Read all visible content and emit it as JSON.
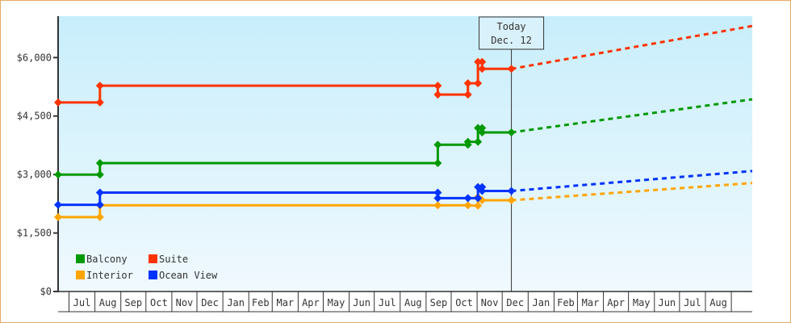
{
  "chart_data": {
    "type": "line",
    "title": "",
    "xlabel": "",
    "ylabel": "",
    "x_type": "date",
    "xlim": [
      "2013-06-18",
      "2015-09-26"
    ],
    "ylim": [
      0,
      7000
    ],
    "y_ticks": [
      0,
      1500,
      3000,
      4500,
      6000
    ],
    "y_tick_labels": [
      "$0",
      "$1,500",
      "$3,000",
      "$4,500",
      "$6,000"
    ],
    "x_tick_labels": [
      "Jul",
      "Aug",
      "Sep",
      "Oct",
      "Nov",
      "Dec",
      "Jan",
      "Feb",
      "Mar",
      "Apr",
      "May",
      "Jun",
      "Jul",
      "Aug",
      "Sep",
      "Oct",
      "Nov",
      "Dec",
      "Jan",
      "Feb",
      "Mar",
      "Apr",
      "May",
      "Jun",
      "Jul",
      "Aug"
    ],
    "grid": false,
    "legend_position": "bottom-left",
    "today": {
      "label_line1": "Today",
      "label_line2": "Dec. 12",
      "date": "2014-12-12"
    },
    "series": [
      {
        "name": "Balcony",
        "color": "#009900",
        "points": [
          [
            "2013-06-18",
            2999
          ],
          [
            "2013-08-07",
            2999
          ],
          [
            "2013-08-07",
            3294
          ],
          [
            "2014-09-15",
            3294
          ],
          [
            "2014-09-15",
            3765
          ],
          [
            "2014-10-21",
            3765
          ],
          [
            "2014-10-21",
            3840
          ],
          [
            "2014-11-02",
            3840
          ],
          [
            "2014-11-02",
            4195
          ],
          [
            "2014-11-07",
            4195
          ],
          [
            "2014-11-07",
            4080
          ],
          [
            "2014-12-12",
            4080
          ]
        ],
        "projection": [
          [
            "2014-12-12",
            4080
          ],
          [
            "2015-09-26",
            4930
          ]
        ]
      },
      {
        "name": "Suite",
        "color": "#ff3300",
        "points": [
          [
            "2013-06-18",
            4850
          ],
          [
            "2013-08-07",
            4850
          ],
          [
            "2013-08-07",
            5280
          ],
          [
            "2014-09-15",
            5280
          ],
          [
            "2014-09-15",
            5050
          ],
          [
            "2014-10-21",
            5050
          ],
          [
            "2014-10-21",
            5340
          ],
          [
            "2014-11-02",
            5340
          ],
          [
            "2014-11-02",
            5890
          ],
          [
            "2014-11-07",
            5890
          ],
          [
            "2014-11-07",
            5710
          ],
          [
            "2014-12-12",
            5710
          ]
        ],
        "projection": [
          [
            "2014-12-12",
            5710
          ],
          [
            "2015-09-26",
            6810
          ]
        ]
      },
      {
        "name": "Interior",
        "color": "#ffa500",
        "points": [
          [
            "2013-06-18",
            1909
          ],
          [
            "2013-08-07",
            1909
          ],
          [
            "2013-08-07",
            2210
          ],
          [
            "2014-09-15",
            2210
          ],
          [
            "2014-10-21",
            2210
          ],
          [
            "2014-11-02",
            2200
          ],
          [
            "2014-11-02",
            2420
          ],
          [
            "2014-11-07",
            2340
          ],
          [
            "2014-12-12",
            2340
          ]
        ],
        "projection": [
          [
            "2014-12-12",
            2340
          ],
          [
            "2015-09-26",
            2783
          ]
        ]
      },
      {
        "name": "Ocean View",
        "color": "#0033ff",
        "points": [
          [
            "2013-06-18",
            2224
          ],
          [
            "2013-08-07",
            2224
          ],
          [
            "2013-08-07",
            2537
          ],
          [
            "2014-09-15",
            2537
          ],
          [
            "2014-09-15",
            2394
          ],
          [
            "2014-10-21",
            2394
          ],
          [
            "2014-11-02",
            2394
          ],
          [
            "2014-11-02",
            2680
          ],
          [
            "2014-11-07",
            2680
          ],
          [
            "2014-11-07",
            2578
          ],
          [
            "2014-12-12",
            2578
          ]
        ],
        "projection": [
          [
            "2014-12-12",
            2578
          ],
          [
            "2015-09-26",
            3090
          ]
        ]
      }
    ],
    "legend_order": [
      "Balcony",
      "Suite",
      "Interior",
      "Ocean View"
    ]
  }
}
